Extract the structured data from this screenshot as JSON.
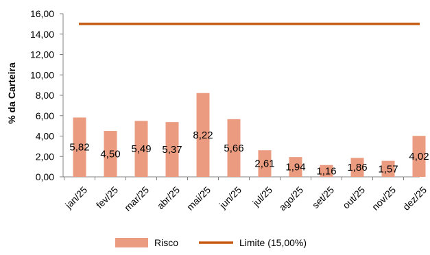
{
  "chart_data": {
    "type": "bar",
    "title": "",
    "xlabel": "",
    "ylabel": "% da Carteira",
    "ylim": [
      0,
      16
    ],
    "ytick_step": 2,
    "ytick_labels": [
      "0,00",
      "2,00",
      "4,00",
      "6,00",
      "8,00",
      "10,00",
      "12,00",
      "14,00",
      "16,00"
    ],
    "categories": [
      "jan/25",
      "fev/25",
      "mar/25",
      "abr/25",
      "mai/25",
      "jun/25",
      "jul/25",
      "ago/25",
      "set/25",
      "out/25",
      "nov/25",
      "dez/25"
    ],
    "series": [
      {
        "name": "Risco",
        "kind": "bar",
        "color": "#eb9c80",
        "values": [
          5.82,
          4.5,
          5.49,
          5.37,
          8.22,
          5.66,
          2.61,
          1.94,
          1.16,
          1.86,
          1.57,
          4.02
        ],
        "labels": [
          "5,82",
          "4,50",
          "5,49",
          "5,37",
          "8,22",
          "5,66",
          "2,61",
          "1,94",
          "1,16",
          "1,86",
          "1,57",
          "4,02"
        ]
      },
      {
        "name": "Limite (15,00%)",
        "kind": "line",
        "color": "#c55a11",
        "values": [
          15,
          15,
          15,
          15,
          15,
          15,
          15,
          15,
          15,
          15,
          15,
          15
        ]
      }
    ],
    "grid": false,
    "legend_position": "bottom"
  }
}
